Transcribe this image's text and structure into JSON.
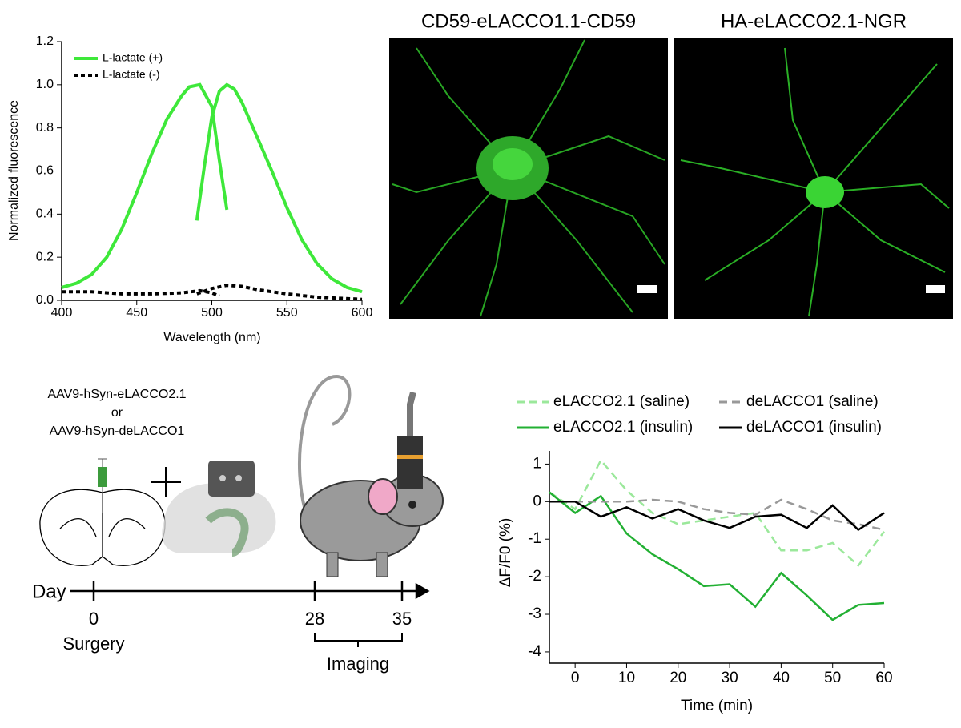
{
  "chart_data": [
    {
      "type": "line",
      "xlabel": "Wavelength (nm)",
      "ylabel": "Normalized fluorescence",
      "xlim": [
        400,
        600
      ],
      "xticks": [
        400,
        450,
        500,
        550,
        600
      ],
      "ylim": [
        0,
        1.2
      ],
      "yticks": [
        {
          "value": 0,
          "label": "0.0"
        },
        0.2,
        0.4,
        0.6,
        0.8,
        {
          "value": 1,
          "label": "1.0"
        },
        1.2
      ],
      "legend": "top-left",
      "series": [
        {
          "name": "L-lactate (+)",
          "color": "#3ee83a",
          "style": "solid",
          "x": [
            400,
            410,
            420,
            430,
            440,
            450,
            460,
            470,
            480,
            485,
            492,
            500,
            505,
            510,
            null,
            490,
            495,
            500,
            505,
            510,
            515,
            520,
            530,
            540,
            550,
            560,
            570,
            580,
            590,
            600
          ],
          "values": [
            0.06,
            0.08,
            0.12,
            0.2,
            0.33,
            0.5,
            0.68,
            0.84,
            0.95,
            0.99,
            1.0,
            0.9,
            0.65,
            0.42,
            null,
            0.37,
            0.62,
            0.85,
            0.97,
            1.0,
            0.98,
            0.92,
            0.76,
            0.6,
            0.43,
            0.28,
            0.17,
            0.1,
            0.06,
            0.04
          ]
        },
        {
          "name": "L-lactate (-)",
          "color": "#000000",
          "style": "dotted",
          "x": [
            400,
            420,
            440,
            460,
            480,
            492,
            500,
            505,
            null,
            490,
            500,
            510,
            520,
            530,
            550,
            570,
            600
          ],
          "values": [
            0.04,
            0.04,
            0.03,
            0.03,
            0.035,
            0.045,
            0.035,
            0.02,
            null,
            0.03,
            0.055,
            0.07,
            0.065,
            0.05,
            0.03,
            0.015,
            0.005
          ]
        }
      ]
    },
    {
      "type": "line",
      "xlabel": "Time (min)",
      "ylabel": "ΔF/F0 (%)",
      "x": [
        -5,
        0,
        5,
        10,
        15,
        20,
        25,
        30,
        35,
        40,
        45,
        50,
        55,
        60
      ],
      "xlim": [
        -5,
        60
      ],
      "xticks": [
        0,
        10,
        20,
        30,
        40,
        50,
        60
      ],
      "ylim": [
        -4.3,
        1.35
      ],
      "yticks": [
        1,
        0,
        -1,
        -2,
        -3,
        -4
      ],
      "legend": "top",
      "series": [
        {
          "name": "eLACCO2.1 (saline)",
          "color": "#9be89b",
          "style": "dashed",
          "values": [
            0.25,
            -0.2,
            1.1,
            0.3,
            -0.3,
            -0.6,
            -0.5,
            -0.4,
            -0.3,
            -1.3,
            -1.3,
            -1.1,
            -1.7,
            -0.8
          ]
        },
        {
          "name": "eLACCO2.1 (insulin)",
          "color": "#22b033",
          "style": "solid",
          "values": [
            0.25,
            -0.3,
            0.15,
            -0.85,
            -1.4,
            -1.8,
            -2.25,
            -2.2,
            -2.8,
            -1.9,
            -2.5,
            -3.15,
            -2.75,
            -2.7
          ]
        },
        {
          "name": "deLACCO1 (saline)",
          "color": "#999999",
          "style": "dashed",
          "values": [
            0,
            0,
            0,
            0,
            0.05,
            0,
            -0.2,
            -0.3,
            -0.35,
            0.05,
            -0.2,
            -0.5,
            -0.6,
            -0.75
          ]
        },
        {
          "name": "deLACCO1 (insulin)",
          "color": "#000000",
          "style": "solid",
          "values": [
            0,
            0,
            -0.4,
            -0.15,
            -0.45,
            -0.2,
            -0.5,
            -0.7,
            -0.4,
            -0.35,
            -0.7,
            -0.1,
            -0.75,
            -0.3
          ]
        }
      ]
    }
  ],
  "images": [
    {
      "title": "CD59-eLACCO1.1-CD59"
    },
    {
      "title": "HA-eLACCO2.1-NGR"
    }
  ],
  "schematic": {
    "vector_1": "AAV9-hSyn-eLACCO2.1",
    "or": "or",
    "vector_2": "AAV9-hSyn-deLACCO1"
  },
  "timeline": {
    "axis_label": "Day",
    "ticks": [
      {
        "day": "0",
        "label": "Surgery"
      },
      {
        "day": "28"
      },
      {
        "day": "35"
      }
    ],
    "bracket_label": "Imaging"
  }
}
